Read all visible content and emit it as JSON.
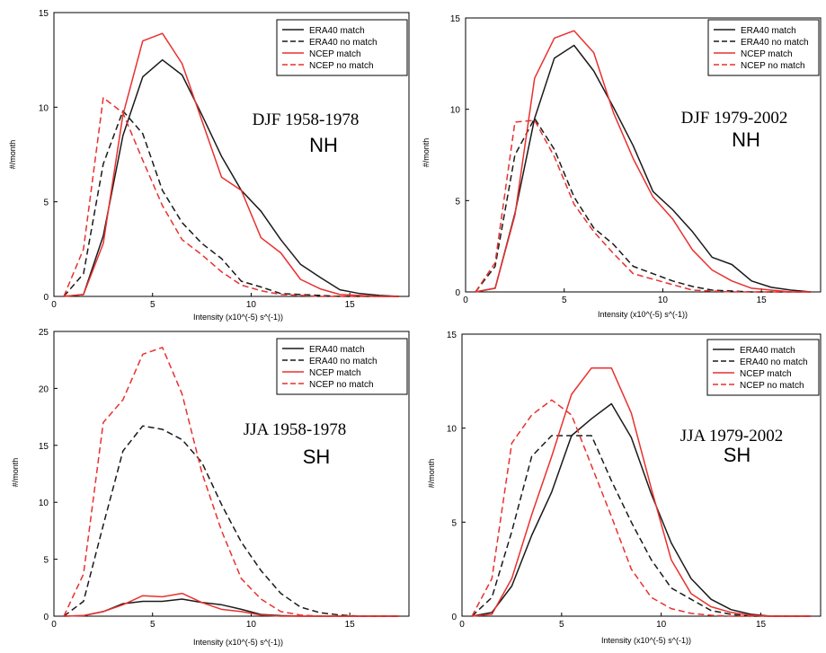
{
  "colors": {
    "era40": "#1a1a1a",
    "ncep": "#e8312f",
    "axis": "#000000",
    "legend_border": "#000000"
  },
  "legend": [
    {
      "label": "ERA40 match",
      "color": "#1a1a1a",
      "dash": "solid"
    },
    {
      "label": "ERA40 no match",
      "color": "#1a1a1a",
      "dash": "dashed"
    },
    {
      "label": "NCEP match",
      "color": "#e8312f",
      "dash": "solid"
    },
    {
      "label": "NCEP no match",
      "color": "#e8312f",
      "dash": "dashed"
    }
  ],
  "chart_data": [
    {
      "type": "line",
      "annotation": "DJF 1958-1978",
      "annotation2": "NH",
      "xlabel": "Intensity (x10^(-5) s^(-1))",
      "ylabel": "#/month",
      "xlim": [
        0,
        18
      ],
      "ylim": [
        0,
        15
      ],
      "xticks": [
        0,
        5,
        10,
        15
      ],
      "yticks": [
        0,
        5,
        10,
        15
      ],
      "legend_position": "top-right",
      "grid": false,
      "x": [
        0.5,
        1.5,
        2.5,
        3.5,
        4.5,
        5.5,
        6.5,
        7.5,
        8.5,
        9.5,
        10.5,
        11.5,
        12.5,
        13.5,
        14.5,
        15.5,
        16.5,
        17.5
      ],
      "series": [
        {
          "name": "ERA40 match",
          "values": [
            0,
            0.1,
            3.2,
            8.5,
            11.6,
            12.5,
            11.7,
            9.6,
            7.4,
            5.6,
            4.5,
            3.0,
            1.7,
            1.0,
            0.35,
            0.15,
            0.05,
            0
          ]
        },
        {
          "name": "ERA40 no match",
          "values": [
            0,
            1.2,
            7.0,
            9.8,
            8.6,
            5.6,
            3.9,
            2.8,
            2.0,
            0.8,
            0.5,
            0.15,
            0.1,
            0.05,
            0,
            0,
            0,
            0
          ]
        },
        {
          "name": "NCEP match",
          "values": [
            0,
            0.1,
            2.8,
            9.6,
            13.5,
            13.9,
            12.3,
            9.3,
            6.3,
            5.6,
            3.1,
            2.3,
            0.9,
            0.4,
            0.1,
            0.05,
            0,
            0
          ]
        },
        {
          "name": "NCEP no match",
          "values": [
            0,
            2.5,
            10.5,
            9.7,
            7.2,
            4.8,
            3.0,
            2.2,
            1.3,
            0.6,
            0.3,
            0.1,
            0.05,
            0,
            0,
            0,
            0,
            0
          ]
        }
      ]
    },
    {
      "type": "line",
      "annotation": "DJF 1979-2002",
      "annotation2": "NH",
      "xlabel": "Intensity (x10^(-5) s^(-1))",
      "ylabel": "#/month",
      "xlim": [
        0,
        18
      ],
      "ylim": [
        0,
        15
      ],
      "xticks": [
        0,
        5,
        10,
        15
      ],
      "yticks": [
        0,
        5,
        10,
        15
      ],
      "legend_position": "top-right",
      "grid": false,
      "x": [
        0.5,
        1.5,
        2.5,
        3.5,
        4.5,
        5.5,
        6.5,
        7.5,
        8.5,
        9.5,
        10.5,
        11.5,
        12.5,
        13.5,
        14.5,
        15.5,
        16.5,
        17.5
      ],
      "series": [
        {
          "name": "ERA40 match",
          "values": [
            0,
            0.2,
            4.3,
            9.5,
            12.8,
            13.5,
            12.1,
            10.1,
            8.0,
            5.5,
            4.5,
            3.3,
            1.9,
            1.5,
            0.6,
            0.25,
            0.1,
            0
          ]
        },
        {
          "name": "ERA40 no match",
          "values": [
            0,
            1.4,
            7.5,
            9.5,
            7.8,
            5.2,
            3.5,
            2.6,
            1.4,
            1.0,
            0.6,
            0.3,
            0.1,
            0.05,
            0,
            0,
            0,
            0
          ]
        },
        {
          "name": "NCEP match",
          "values": [
            0,
            0.2,
            4.2,
            11.7,
            13.9,
            14.3,
            13.1,
            9.8,
            7.3,
            5.2,
            4.0,
            2.3,
            1.2,
            0.6,
            0.2,
            0.1,
            0,
            0
          ]
        },
        {
          "name": "NCEP no match",
          "values": [
            0,
            1.6,
            9.3,
            9.4,
            7.4,
            4.8,
            3.3,
            2.1,
            1.0,
            0.7,
            0.4,
            0.1,
            0.05,
            0,
            0,
            0,
            0,
            0
          ]
        }
      ]
    },
    {
      "type": "line",
      "annotation": "JJA 1958-1978",
      "annotation2": "SH",
      "xlabel": "Intensity (x10^(-5) s^(-1))",
      "ylabel": "#/month",
      "xlim": [
        0,
        18
      ],
      "ylim": [
        0,
        25
      ],
      "xticks": [
        0,
        5,
        10,
        15
      ],
      "yticks": [
        0,
        5,
        10,
        15,
        20,
        25
      ],
      "legend_position": "top-right",
      "grid": false,
      "x": [
        0.5,
        1.5,
        2.5,
        3.5,
        4.5,
        5.5,
        6.5,
        7.5,
        8.5,
        9.5,
        10.5,
        11.5,
        12.5,
        13.5,
        14.5,
        15.5,
        16.5,
        17.5
      ],
      "series": [
        {
          "name": "ERA40 match",
          "values": [
            0,
            0.05,
            0.4,
            1.1,
            1.3,
            1.3,
            1.5,
            1.2,
            1.0,
            0.6,
            0.15,
            0.05,
            0,
            0,
            0,
            0,
            0,
            0
          ]
        },
        {
          "name": "ERA40 no match",
          "values": [
            0,
            1.3,
            8.0,
            14.5,
            16.7,
            16.4,
            15.5,
            13.5,
            9.8,
            6.5,
            4.0,
            2.0,
            0.8,
            0.3,
            0.1,
            0,
            0,
            0
          ]
        },
        {
          "name": "NCEP match",
          "values": [
            0,
            0.05,
            0.4,
            1.0,
            1.8,
            1.7,
            2.0,
            1.2,
            0.6,
            0.4,
            0.1,
            0,
            0,
            0,
            0,
            0,
            0,
            0
          ]
        },
        {
          "name": "NCEP no match",
          "values": [
            0,
            3.7,
            17.0,
            19.0,
            23.0,
            23.6,
            19.5,
            12.6,
            7.5,
            3.3,
            1.5,
            0.4,
            0.1,
            0,
            0,
            0,
            0,
            0
          ]
        }
      ]
    },
    {
      "type": "line",
      "annotation": "JJA 1979-2002",
      "annotation2": "SH",
      "xlabel": "Intensity (x10^(-5) s^(-1))",
      "ylabel": "#/month",
      "xlim": [
        0,
        18
      ],
      "ylim": [
        0,
        15
      ],
      "xticks": [
        0,
        5,
        10,
        15
      ],
      "yticks": [
        0,
        5,
        10,
        15
      ],
      "legend_position": "top-right",
      "grid": false,
      "x": [
        0.5,
        1.5,
        2.5,
        3.5,
        4.5,
        5.5,
        6.5,
        7.5,
        8.5,
        9.5,
        10.5,
        11.5,
        12.5,
        13.5,
        14.5,
        15.5,
        16.5,
        17.5
      ],
      "series": [
        {
          "name": "ERA40 match",
          "values": [
            0,
            0.2,
            1.6,
            4.3,
            6.6,
            9.6,
            10.5,
            11.3,
            9.5,
            6.5,
            3.9,
            2.0,
            0.9,
            0.35,
            0.1,
            0,
            0,
            0
          ]
        },
        {
          "name": "ERA40 no match",
          "values": [
            0,
            1.0,
            4.5,
            8.5,
            9.6,
            9.6,
            9.6,
            7.2,
            5.0,
            3.0,
            1.5,
            0.9,
            0.3,
            0.1,
            0,
            0,
            0,
            0
          ]
        },
        {
          "name": "NCEP match",
          "values": [
            0,
            0.1,
            2.0,
            5.4,
            8.5,
            11.8,
            13.2,
            13.2,
            10.8,
            6.8,
            3.0,
            1.2,
            0.5,
            0.2,
            0.05,
            0,
            0,
            0
          ]
        },
        {
          "name": "NCEP no match",
          "values": [
            0,
            2.0,
            9.2,
            10.7,
            11.5,
            10.7,
            8.0,
            5.3,
            2.5,
            1.0,
            0.4,
            0.15,
            0.05,
            0,
            0,
            0,
            0,
            0
          ]
        }
      ]
    }
  ]
}
